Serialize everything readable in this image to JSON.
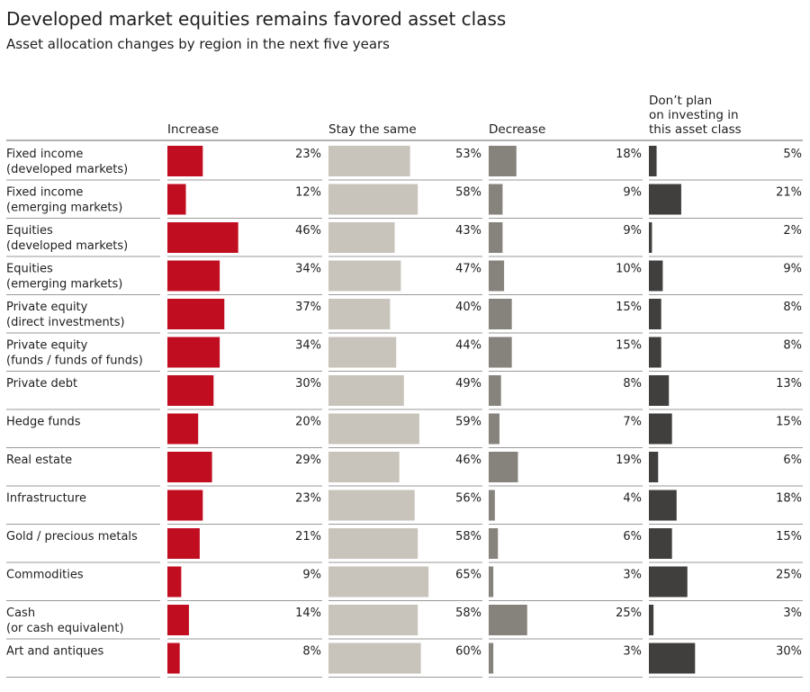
{
  "title": "Developed market equities remains favored asset class",
  "subtitle": "Asset allocation changes by region in the next five years",
  "chart_data": {
    "type": "bar",
    "orientation": "horizontal",
    "layout": "small-multiples",
    "title": "Developed market equities remains favored asset class",
    "subtitle": "Asset allocation changes by region in the next five years",
    "unit": "%",
    "categories": [
      [
        "Fixed income",
        "(developed markets)"
      ],
      [
        "Fixed income",
        "(emerging markets)"
      ],
      [
        "Equities",
        "(developed markets)"
      ],
      [
        "Equities",
        "(emerging markets)"
      ],
      [
        "Private equity",
        "(direct investments)"
      ],
      [
        "Private equity",
        "(funds / funds of funds)"
      ],
      [
        "Private debt"
      ],
      [
        "Hedge funds"
      ],
      [
        "Real estate"
      ],
      [
        "Infrastructure"
      ],
      [
        "Gold / precious metals"
      ],
      [
        "Commodities"
      ],
      [
        "Cash",
        "(or cash equivalent)"
      ],
      [
        "Art and antiques"
      ]
    ],
    "series": [
      {
        "name": [
          "Increase"
        ],
        "color": "#c00d20",
        "values": [
          23,
          12,
          46,
          34,
          37,
          34,
          30,
          20,
          29,
          23,
          21,
          9,
          14,
          8
        ]
      },
      {
        "name": [
          "Stay the same"
        ],
        "color": "#c8c3bb",
        "values": [
          53,
          58,
          43,
          47,
          40,
          44,
          49,
          59,
          46,
          56,
          58,
          65,
          58,
          60
        ]
      },
      {
        "name": [
          "Decrease"
        ],
        "color": "#86827c",
        "values": [
          18,
          9,
          9,
          10,
          15,
          15,
          8,
          7,
          19,
          4,
          6,
          3,
          25,
          3
        ]
      },
      {
        "name": [
          "Don’t plan",
          "on investing in",
          "this asset class"
        ],
        "color": "#403f3d",
        "values": [
          5,
          21,
          2,
          9,
          8,
          8,
          13,
          15,
          6,
          18,
          15,
          25,
          3,
          30
        ]
      }
    ]
  }
}
